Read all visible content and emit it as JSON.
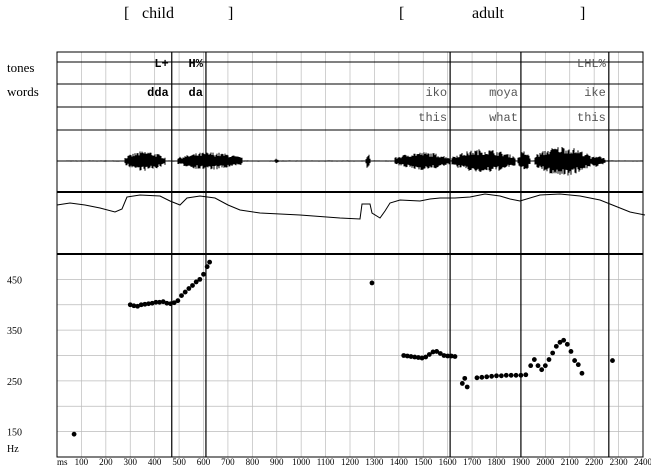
{
  "header": {
    "child_open": "[",
    "child_label": "child",
    "child_close": "]",
    "adult_open": "[",
    "adult_label": "adult",
    "adult_close": "]"
  },
  "tiers": {
    "tones_label": "tones",
    "words_label": "words",
    "tones": [
      {
        "text": "L+",
        "x_ms": 470
      },
      {
        "text": "H%",
        "x_ms": 610
      },
      {
        "text": "LHL%",
        "x_ms": 2260
      }
    ],
    "words": [
      {
        "text": "dda",
        "x_ms": 470
      },
      {
        "text": "da",
        "x_ms": 610
      },
      {
        "text": "iko",
        "x_ms": 1610
      },
      {
        "text": "moya",
        "x_ms": 1900
      },
      {
        "text": "ike",
        "x_ms": 2260
      }
    ],
    "glosses": [
      {
        "text": "this",
        "x_ms": 1610
      },
      {
        "text": "what",
        "x_ms": 1900
      },
      {
        "text": "this",
        "x_ms": 2260
      }
    ],
    "boundaries_ms": [
      470,
      610,
      1610,
      1900,
      2260
    ]
  },
  "axes": {
    "hz_label": "Hz",
    "ms_label": "ms",
    "x_range_ms": [
      0,
      2400
    ],
    "x_ticks": [
      "100",
      "200",
      "300",
      "400",
      "500",
      "600",
      "700",
      "800",
      "900",
      "1000",
      "1100",
      "1200",
      "1300",
      "1400",
      "1500",
      "1600",
      "1700",
      "1800",
      "1900",
      "2000",
      "2100",
      "2200",
      "2300",
      "2400"
    ],
    "y_range_hz": [
      100,
      500
    ],
    "y_ticks": [
      "450",
      "350",
      "250",
      "150"
    ]
  },
  "chart_data": {
    "type": "scatter",
    "xlabel": "ms",
    "ylabel": "Hz",
    "xlim": [
      0,
      2400
    ],
    "ylim": [
      100,
      500
    ],
    "grid": true,
    "points": [
      [
        70,
        145
      ],
      [
        300,
        400
      ],
      [
        315,
        398
      ],
      [
        330,
        397
      ],
      [
        345,
        400
      ],
      [
        360,
        401
      ],
      [
        375,
        402
      ],
      [
        390,
        403
      ],
      [
        405,
        405
      ],
      [
        420,
        405
      ],
      [
        435,
        406
      ],
      [
        450,
        403
      ],
      [
        465,
        402
      ],
      [
        480,
        404
      ],
      [
        495,
        408
      ],
      [
        510,
        418
      ],
      [
        525,
        425
      ],
      [
        540,
        432
      ],
      [
        555,
        438
      ],
      [
        570,
        445
      ],
      [
        585,
        450
      ],
      [
        600,
        460
      ],
      [
        615,
        475
      ],
      [
        625,
        484
      ],
      [
        1290,
        443
      ],
      [
        1420,
        300
      ],
      [
        1435,
        299
      ],
      [
        1450,
        298
      ],
      [
        1465,
        297
      ],
      [
        1480,
        296
      ],
      [
        1495,
        295
      ],
      [
        1510,
        297
      ],
      [
        1525,
        302
      ],
      [
        1540,
        307
      ],
      [
        1555,
        308
      ],
      [
        1570,
        304
      ],
      [
        1585,
        300
      ],
      [
        1600,
        299
      ],
      [
        1615,
        299
      ],
      [
        1630,
        298
      ],
      [
        1660,
        245
      ],
      [
        1680,
        238
      ],
      [
        1670,
        255
      ],
      [
        1720,
        256
      ],
      [
        1740,
        257
      ],
      [
        1760,
        258
      ],
      [
        1780,
        259
      ],
      [
        1800,
        260
      ],
      [
        1820,
        260
      ],
      [
        1840,
        261
      ],
      [
        1860,
        261
      ],
      [
        1880,
        261
      ],
      [
        1900,
        261
      ],
      [
        1920,
        262
      ],
      [
        1940,
        280
      ],
      [
        1955,
        292
      ],
      [
        1970,
        280
      ],
      [
        1985,
        272
      ],
      [
        2000,
        280
      ],
      [
        2015,
        292
      ],
      [
        2030,
        305
      ],
      [
        2045,
        318
      ],
      [
        2060,
        326
      ],
      [
        2075,
        330
      ],
      [
        2090,
        322
      ],
      [
        2105,
        308
      ],
      [
        2120,
        290
      ],
      [
        2135,
        282
      ],
      [
        2150,
        265
      ],
      [
        2275,
        290
      ]
    ]
  }
}
